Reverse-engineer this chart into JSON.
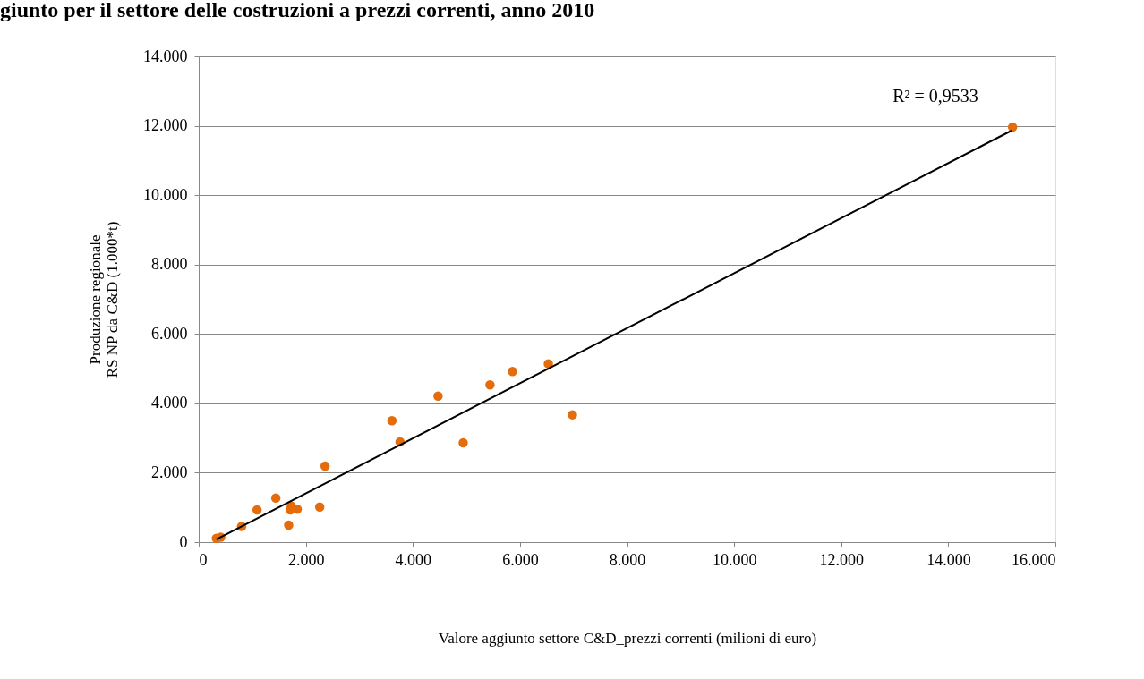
{
  "chart_data": {
    "type": "scatter",
    "title": "giunto per il settore delle costruzioni a prezzi correnti, anno 2010",
    "xlabel": "Valore aggiunto settore C&D_prezzi correnti (milioni di euro)",
    "ylabel": "Produzione  regionale\nRS NP da C&D (1.000*t)",
    "annotations": [
      "R² = 0,9533"
    ],
    "series": [
      {
        "marker": "circle",
        "color": "#e46c0a",
        "x": [
          330,
          410,
          800,
          1090,
          1440,
          1680,
          1730,
          1710,
          1840,
          2260,
          2360,
          3610,
          3760,
          4470,
          4940,
          5440,
          5860,
          6530,
          6980,
          15200
        ],
        "values": [
          110,
          140,
          450,
          930,
          1270,
          490,
          1040,
          930,
          950,
          1010,
          2190,
          3500,
          2890,
          4210,
          2860,
          4530,
          4920,
          5140,
          3670,
          11960
        ]
      },
      {
        "type": "line",
        "color": "#000000",
        "x": [
          330,
          15180
        ],
        "values": [
          80,
          11860
        ]
      }
    ],
    "xlim": [
      0,
      16000
    ],
    "xticks": [
      0,
      {
        "value": 2000,
        "label": "2.000"
      },
      {
        "value": 4000,
        "label": "4.000"
      },
      {
        "value": 6000,
        "label": "6.000"
      },
      {
        "value": 8000,
        "label": "8.000"
      },
      {
        "value": 10000,
        "label": "10.000"
      },
      {
        "value": 12000,
        "label": "12.000"
      },
      {
        "value": 14000,
        "label": "14.000"
      },
      {
        "value": 16000,
        "label": "16.000"
      }
    ],
    "ylim": [
      0,
      14000
    ],
    "yticks": [
      0,
      {
        "value": 2000,
        "label": "2.000"
      },
      {
        "value": 4000,
        "label": "4.000"
      },
      {
        "value": 6000,
        "label": "6.000"
      },
      {
        "value": 8000,
        "label": "8.000"
      },
      {
        "value": 10000,
        "label": "10.000"
      },
      {
        "value": 12000,
        "label": "12.000"
      },
      {
        "value": 14000,
        "label": "14.000"
      }
    ],
    "grid": "y"
  }
}
